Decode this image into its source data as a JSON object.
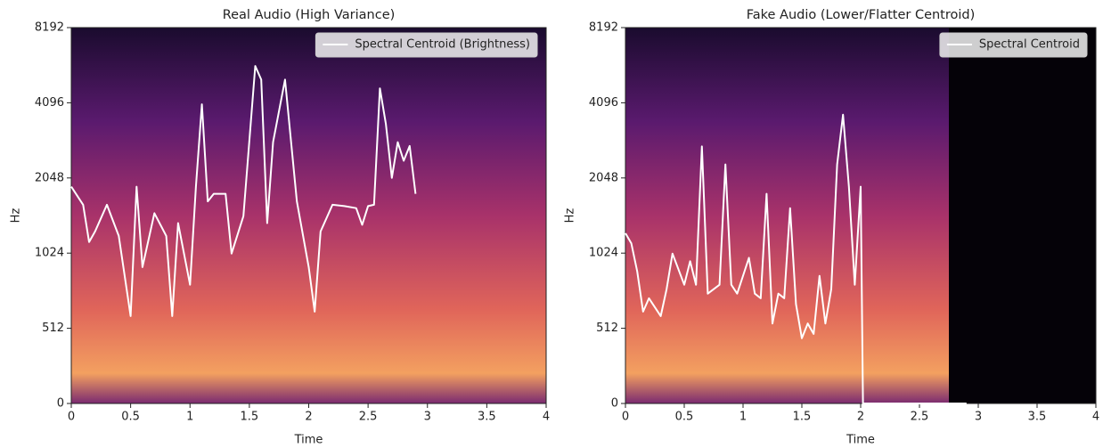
{
  "chart_data": [
    {
      "type": "line",
      "title": "Real Audio (High Variance)",
      "xlabel": "Time",
      "ylabel": "Hz",
      "xlim": [
        0,
        4
      ],
      "xticks": [
        0,
        0.5,
        1,
        1.5,
        2,
        2.5,
        3,
        3.5,
        4
      ],
      "ylim": [
        0,
        8192
      ],
      "yticks": [
        0,
        512,
        1024,
        2048,
        4096,
        8192
      ],
      "yscale": "symlog",
      "legend": "upper right",
      "x": [
        0,
        0.1,
        0.15,
        0.2,
        0.3,
        0.4,
        0.5,
        0.55,
        0.6,
        0.7,
        0.8,
        0.85,
        0.9,
        1.0,
        1.05,
        1.1,
        1.15,
        1.2,
        1.3,
        1.35,
        1.45,
        1.55,
        1.6,
        1.65,
        1.7,
        1.8,
        1.9,
        2.0,
        2.05,
        2.1,
        2.2,
        2.3,
        2.4,
        2.45,
        2.5,
        2.55,
        2.6,
        2.65,
        2.7,
        2.75,
        2.8,
        2.85,
        2.9
      ],
      "series": [
        {
          "name": "Spectral Centroid (Brightness)",
          "color": "#ffffff",
          "values": [
            1890,
            1600,
            1135,
            1250,
            1600,
            1200,
            573,
            1890,
            900,
            1480,
            1200,
            573,
            1350,
            765,
            1890,
            4040,
            1650,
            1770,
            1770,
            1020,
            1440,
            5750,
            5070,
            1350,
            2850,
            5070,
            1650,
            900,
            597,
            1250,
            1600,
            1580,
            1550,
            1330,
            1580,
            1600,
            4680,
            3370,
            2050,
            2850,
            2400,
            2750,
            1770
          ]
        }
      ]
    },
    {
      "type": "line",
      "title": "Fake Audio (Lower/Flatter Centroid)",
      "xlabel": "Time",
      "ylabel": "Hz",
      "xlim": [
        0,
        4
      ],
      "xticks": [
        0,
        0.5,
        1,
        1.5,
        2,
        2.5,
        3,
        3.5,
        4
      ],
      "ylim": [
        0,
        8192
      ],
      "yticks": [
        0,
        512,
        1024,
        2048,
        4096,
        8192
      ],
      "yscale": "symlog",
      "legend": "upper right",
      "x": [
        0,
        0.05,
        0.1,
        0.15,
        0.2,
        0.3,
        0.35,
        0.4,
        0.5,
        0.55,
        0.6,
        0.65,
        0.7,
        0.8,
        0.85,
        0.9,
        0.95,
        1.05,
        1.1,
        1.15,
        1.2,
        1.25,
        1.3,
        1.35,
        1.4,
        1.45,
        1.5,
        1.55,
        1.6,
        1.65,
        1.7,
        1.75,
        1.8,
        1.85,
        1.9,
        1.95,
        2.0,
        2.02,
        2.9
      ],
      "series": [
        {
          "name": "Spectral Centroid",
          "color": "#ffffff",
          "values": [
            1230,
            1120,
            865,
            597,
            675,
            573,
            735,
            1020,
            765,
            950,
            765,
            2740,
            705,
            765,
            2320,
            765,
            705,
            980,
            705,
            675,
            1770,
            535,
            705,
            675,
            1550,
            640,
            444,
            535,
            474,
            830,
            535,
            735,
            2320,
            3670,
            1890,
            765,
            1890,
            0,
            0
          ]
        }
      ]
    }
  ]
}
